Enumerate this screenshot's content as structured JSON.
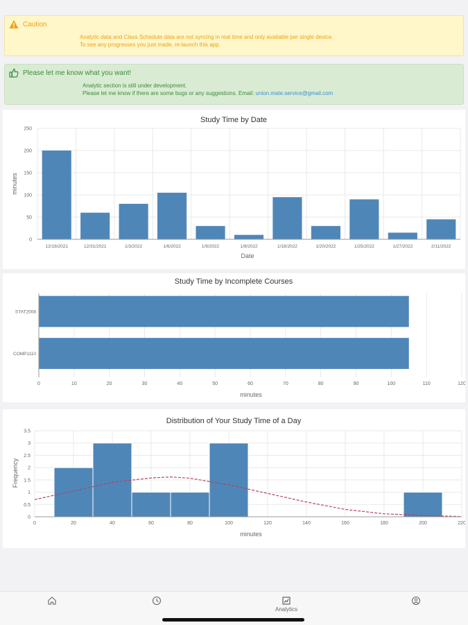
{
  "alerts": {
    "caution": {
      "title": "Caution",
      "line1": "Analytic data and Class Schedule data are not syncing in real time and only available per single device.",
      "line2": "To see any progresses you just made, re-launch this app."
    },
    "feedback": {
      "title": "Please let me know what you want!",
      "line1": "Analytic section is still under development.",
      "line2": "Please let me know if there are some bugs or any suggestions. Email:",
      "email": "union.mate.service@gmail.com"
    }
  },
  "colors": {
    "bar": "#4f86b8",
    "curve": "#b1435f",
    "grid": "#e8e8e8"
  },
  "chart_data": [
    {
      "type": "bar",
      "title": "Study Time by Date",
      "xlabel": "Date",
      "ylabel": "minutes",
      "categories": [
        "12/18/2021",
        "12/31/2021",
        "1/3/2022",
        "1/6/2022",
        "1/9/2022",
        "1/9/2022",
        "1/18/2022",
        "1/20/2022",
        "1/25/2022",
        "1/27/2022",
        "2/11/2022"
      ],
      "values": [
        200,
        60,
        80,
        105,
        30,
        10,
        95,
        30,
        90,
        15,
        45
      ],
      "ylim": [
        0,
        250
      ],
      "yticks": [
        0,
        50,
        100,
        150,
        200,
        250
      ],
      "grid": true
    },
    {
      "type": "bar",
      "orientation": "horizontal",
      "title": "Study Time by Incomplete Courses",
      "xlabel": "minutes",
      "ylabel": "",
      "categories": [
        "STAT2008",
        "COMP1110"
      ],
      "values": [
        105,
        105
      ],
      "xlim": [
        0,
        120
      ],
      "xticks": [
        0,
        10,
        20,
        30,
        40,
        50,
        60,
        70,
        80,
        90,
        100,
        110,
        120
      ],
      "grid": true
    },
    {
      "type": "bar",
      "subtype": "histogram",
      "title": "Distribution of Your Study Time of a Day",
      "xlabel": "minutes",
      "ylabel": "Frequency",
      "bins": [
        {
          "start": 10,
          "end": 30,
          "count": 2
        },
        {
          "start": 30,
          "end": 50,
          "count": 3
        },
        {
          "start": 50,
          "end": 70,
          "count": 1
        },
        {
          "start": 70,
          "end": 90,
          "count": 1
        },
        {
          "start": 90,
          "end": 110,
          "count": 3
        },
        {
          "start": 190,
          "end": 210,
          "count": 1
        }
      ],
      "density_curve": {
        "x": [
          0,
          20,
          40,
          60,
          70,
          80,
          100,
          120,
          140,
          160,
          180,
          200,
          220
        ],
        "y": [
          0.7,
          1.05,
          1.4,
          1.58,
          1.62,
          1.57,
          1.3,
          0.95,
          0.6,
          0.3,
          0.12,
          0.05,
          0.01
        ]
      },
      "xlim": [
        0,
        220
      ],
      "xticks": [
        0,
        20,
        40,
        60,
        80,
        100,
        120,
        140,
        160,
        180,
        200,
        220
      ],
      "ylim": [
        0,
        3.5
      ],
      "yticks": [
        0,
        0.5,
        1,
        1.5,
        2,
        2.5,
        3,
        3.5
      ],
      "grid": true
    }
  ],
  "nav": {
    "home_icon": "home-icon",
    "clock_icon": "clock-icon",
    "analytics_icon": "analytics-icon",
    "analytics_label": "Analytics",
    "profile_icon": "profile-icon"
  }
}
